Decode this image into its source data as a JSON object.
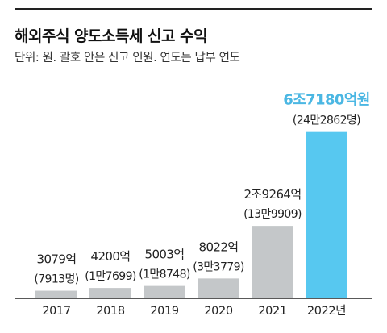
{
  "header": {
    "title": "해외주식 양도소득세 신고 수익",
    "subtitle": "단위: 원. 괄호 안은 신고 인원. 연도는 납부 연도"
  },
  "colors": {
    "bar": "#c4c7c9",
    "highlight_bar": "#57c8f0",
    "highlight_text": "#4bb7e3",
    "text": "#222222",
    "axis": "#222222"
  },
  "chart_data": {
    "type": "bar",
    "title": "해외주식 양도소득세 신고 수익",
    "subtitle": "단위: 원. 괄호 안은 신고 인원. 연도는 납부 연도",
    "categories": [
      "2017",
      "2018",
      "2019",
      "2020",
      "2021",
      "2022년"
    ],
    "values": [
      307900000000,
      420000000000,
      500300000000,
      802200000000,
      2926400000000,
      6718000000000
    ],
    "value_labels": [
      "3079억",
      "4200억",
      "5003억",
      "8022억",
      "2조9264억",
      "6조7180억원"
    ],
    "count_labels": [
      "(7913명)",
      "(1만7699)",
      "(1만8748)",
      "(3만3779)",
      "(13만9909)",
      "(24만2862명)"
    ],
    "highlight_index": 5,
    "ylim": [
      0,
      7000000000000
    ],
    "grid": false,
    "legend": "none"
  }
}
